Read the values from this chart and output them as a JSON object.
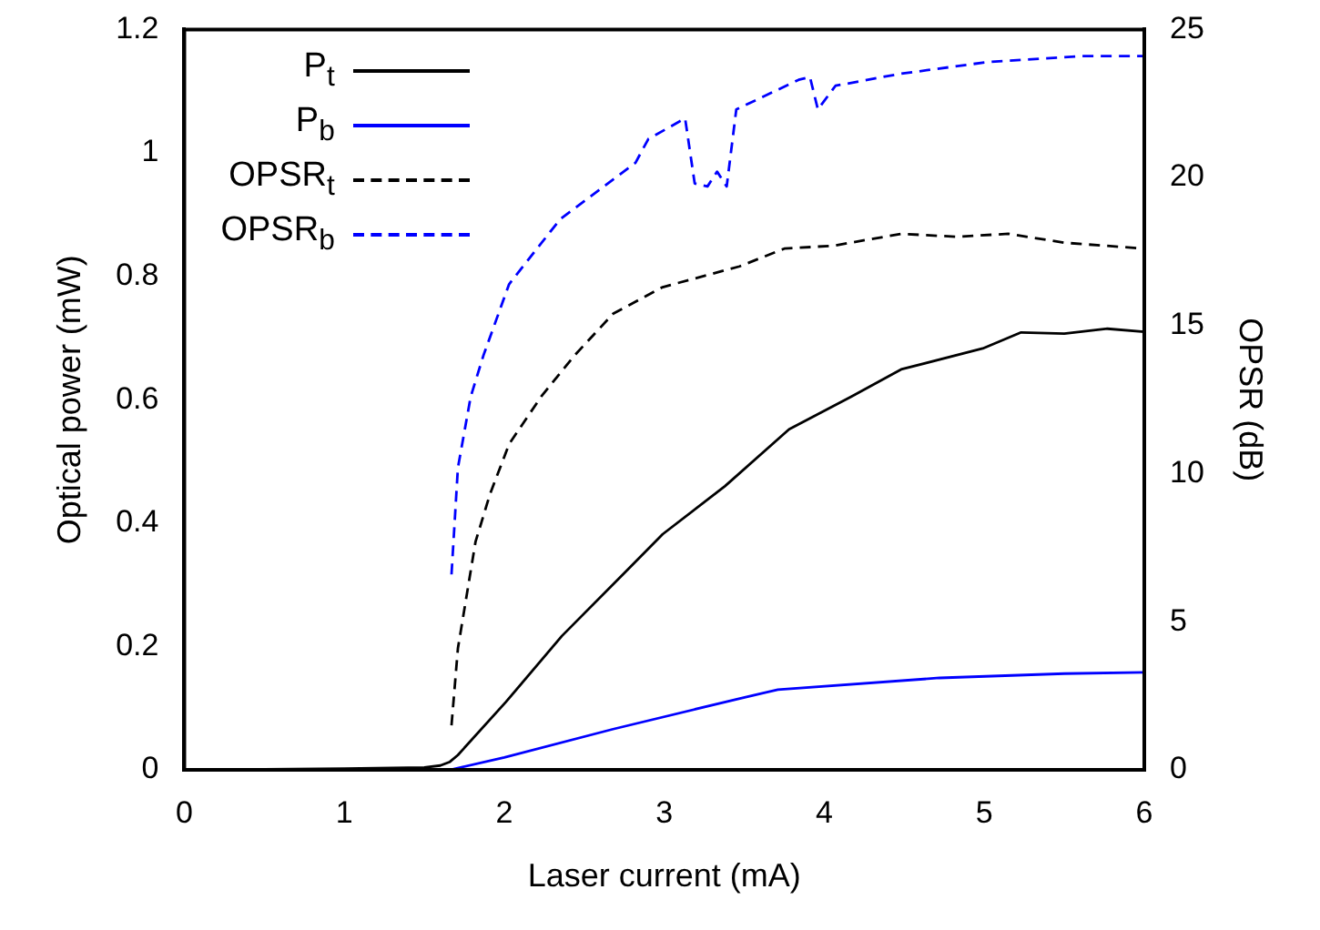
{
  "chart_data": {
    "type": "line",
    "xlabel": "Laser current (mA)",
    "ylabel": "Optical power (mW)",
    "y2label": "OPSR (dB)",
    "xlim": [
      0,
      6
    ],
    "xticks": [
      0,
      1,
      2,
      3,
      4,
      5,
      6
    ],
    "ylim": [
      0,
      1.2
    ],
    "yticks": [
      0,
      0.2,
      0.4,
      0.6,
      0.8,
      1,
      1.2
    ],
    "y2lim": [
      0,
      25
    ],
    "y2ticks": [
      0,
      5,
      10,
      15,
      20,
      25
    ],
    "grid": false,
    "legend": "top left",
    "marker": "none",
    "series": [
      {
        "name": "P$_{t}$",
        "color": "#000000",
        "line_style": "solid",
        "x": [
          0,
          0.5,
          1,
          1.5,
          1.6,
          1.66,
          1.71,
          2.01,
          2.36,
          2.75,
          2.99,
          3.38,
          3.78,
          4.17,
          4.48,
          4.99,
          5.23,
          5.5,
          5.77,
          6
        ],
        "values": [
          0,
          0.001,
          0.002,
          0.004,
          0.007,
          0.013,
          0.024,
          0.11,
          0.217,
          0.319,
          0.382,
          0.46,
          0.552,
          0.605,
          0.649,
          0.683,
          0.709,
          0.707,
          0.715,
          0.71
        ]
      },
      {
        "name": "P$_{b}$",
        "color": "#0000ff",
        "line_style": "solid",
        "x": [
          0,
          1,
          1.66,
          2.0,
          2.68,
          3.46,
          3.71,
          4.72,
          5.5,
          6
        ],
        "values": [
          0,
          0,
          0,
          0.02,
          0.066,
          0.115,
          0.13,
          0.149,
          0.156,
          0.158
        ]
      },
      {
        "name": "OPSR$_{t}$",
        "color": "#000000",
        "line_style": "dashed",
        "axis": "y2",
        "x": [
          1.67,
          1.71,
          1.82,
          1.91,
          2.03,
          2.23,
          2.44,
          2.68,
          2.99,
          3.47,
          3.75,
          4.06,
          4.48,
          4.83,
          5.15,
          5.5,
          6
        ],
        "values": [
          1.5,
          4.1,
          7.7,
          9.3,
          11,
          12.6,
          14,
          15.4,
          16.3,
          17,
          17.6,
          17.7,
          18.1,
          18,
          18.1,
          17.8,
          17.6
        ]
      },
      {
        "name": "OPSR$_{b}$",
        "color": "#0000ff",
        "line_style": "dashed",
        "axis": "y2",
        "x": [
          1.67,
          1.71,
          1.79,
          1.87,
          2.03,
          2.35,
          2.82,
          2.9,
          3.13,
          3.19,
          3.27,
          3.33,
          3.39,
          3.45,
          3.84,
          3.91,
          3.96,
          4.07,
          4.47,
          5.02,
          5.6,
          6
        ],
        "values": [
          6.6,
          10.2,
          12.6,
          14,
          16.4,
          18.6,
          20.5,
          21.3,
          22,
          19.8,
          19.7,
          20.2,
          19.7,
          22.3,
          23.3,
          23.4,
          22.3,
          23.1,
          23.5,
          23.9,
          24.1,
          24.1
        ]
      }
    ]
  }
}
